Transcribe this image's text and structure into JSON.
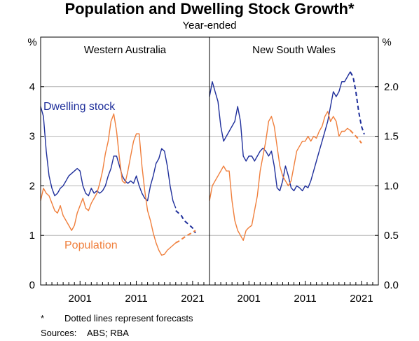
{
  "title": "Population and Dwelling Stock Growth*",
  "subtitle": "Year-ended",
  "footnote": {
    "marker": "*",
    "text": "Dotted lines represent forecasts"
  },
  "sources": {
    "label": "Sources:",
    "text": "ABS; RBA"
  },
  "colors": {
    "dwelling_stock": "#1f2f9b",
    "population": "#f07f3c",
    "grid": "#b4b4b4"
  },
  "chart_data": [
    {
      "type": "line",
      "title": "Western Australia",
      "ylabel": "%",
      "ylim": [
        0,
        5
      ],
      "yticks": [
        "0",
        "1",
        "2",
        "3",
        "4"
      ],
      "xlim": [
        1994,
        2024
      ],
      "xticks": [
        "2001",
        "2011",
        "2021"
      ],
      "xtick_values": [
        2001,
        2011,
        2021
      ],
      "grid": true,
      "series": [
        {
          "name": "Dwelling stock",
          "x": [
            1994.0,
            1994.5,
            1995.0,
            1995.5,
            1996.0,
            1996.5,
            1997.0,
            1997.5,
            1998.0,
            1998.5,
            1999.0,
            1999.5,
            2000.0,
            2000.5,
            2001.0,
            2001.5,
            2002.0,
            2002.5,
            2003.0,
            2003.5,
            2004.0,
            2004.5,
            2005.0,
            2005.5,
            2006.0,
            2006.5,
            2007.0,
            2007.5,
            2008.0,
            2008.5,
            2009.0,
            2009.5,
            2010.0,
            2010.5,
            2011.0,
            2011.5,
            2012.0,
            2012.5,
            2013.0,
            2013.5,
            2014.0,
            2014.5,
            2015.0,
            2015.5,
            2016.0,
            2016.5,
            2017.0,
            2017.5,
            2018.0
          ],
          "y": [
            3.6,
            3.4,
            2.7,
            2.2,
            1.95,
            1.8,
            1.85,
            1.95,
            2.0,
            2.1,
            2.2,
            2.25,
            2.3,
            2.35,
            2.3,
            2.0,
            1.85,
            1.8,
            1.95,
            1.85,
            1.9,
            1.85,
            1.9,
            2.0,
            2.2,
            2.35,
            2.6,
            2.6,
            2.4,
            2.2,
            2.1,
            2.05,
            2.1,
            2.05,
            2.2,
            2.0,
            1.85,
            1.75,
            1.7,
            2.0,
            2.2,
            2.45,
            2.55,
            2.75,
            2.7,
            2.4,
            2.0,
            1.7,
            1.55
          ]
        },
        {
          "name": "Dwelling stock forecast",
          "x": [
            2018.0,
            2018.5,
            2019.0,
            2019.5,
            2020.0,
            2020.5,
            2021.0,
            2021.5
          ],
          "y": [
            1.5,
            1.45,
            1.4,
            1.3,
            1.25,
            1.2,
            1.15,
            1.05
          ]
        },
        {
          "name": "Population",
          "x": [
            1994.0,
            1994.5,
            1995.0,
            1995.5,
            1996.0,
            1996.5,
            1997.0,
            1997.5,
            1998.0,
            1998.5,
            1999.0,
            1999.5,
            2000.0,
            2000.5,
            2001.0,
            2001.5,
            2002.0,
            2002.5,
            2003.0,
            2003.5,
            2004.0,
            2004.5,
            2005.0,
            2005.5,
            2006.0,
            2006.5,
            2007.0,
            2007.5,
            2008.0,
            2008.5,
            2009.0,
            2009.5,
            2010.0,
            2010.5,
            2011.0,
            2011.5,
            2012.0,
            2012.5,
            2013.0,
            2013.5,
            2014.0,
            2014.5,
            2015.0,
            2015.5,
            2016.0,
            2016.5,
            2017.0,
            2017.5,
            2018.0
          ],
          "y": [
            1.7,
            1.95,
            1.85,
            1.8,
            1.65,
            1.5,
            1.45,
            1.6,
            1.4,
            1.3,
            1.2,
            1.1,
            1.2,
            1.45,
            1.6,
            1.75,
            1.55,
            1.5,
            1.65,
            1.75,
            1.85,
            2.05,
            2.3,
            2.65,
            2.9,
            3.3,
            3.45,
            3.1,
            2.55,
            2.1,
            2.05,
            2.3,
            2.6,
            2.9,
            3.05,
            3.05,
            2.4,
            1.9,
            1.5,
            1.3,
            1.05,
            0.85,
            0.7,
            0.6,
            0.62,
            0.7,
            0.75,
            0.8,
            0.85
          ]
        },
        {
          "name": "Population forecast",
          "x": [
            2018.0,
            2018.5,
            2019.0,
            2019.5,
            2020.0,
            2020.5,
            2021.0,
            2021.5
          ],
          "y": [
            0.85,
            0.88,
            0.92,
            0.96,
            1.0,
            1.03,
            1.06,
            1.1
          ]
        }
      ]
    },
    {
      "type": "line",
      "title": "New South Wales",
      "ylabel": "%",
      "ylim": [
        0,
        2.5
      ],
      "yticks": [
        "0.0",
        "0.5",
        "1.0",
        "1.5",
        "2.0"
      ],
      "xlim": [
        1994,
        2024
      ],
      "xticks": [
        "2001",
        "2011",
        "2021"
      ],
      "xtick_values": [
        2001,
        2011,
        2021
      ],
      "grid": true,
      "series": [
        {
          "name": "Dwelling stock",
          "x": [
            1994.0,
            1994.5,
            1995.0,
            1995.5,
            1996.0,
            1996.5,
            1997.0,
            1997.5,
            1998.0,
            1998.5,
            1999.0,
            1999.5,
            2000.0,
            2000.5,
            2001.0,
            2001.5,
            2002.0,
            2002.5,
            2003.0,
            2003.5,
            2004.0,
            2004.5,
            2005.0,
            2005.5,
            2006.0,
            2006.5,
            2007.0,
            2007.5,
            2008.0,
            2008.5,
            2009.0,
            2009.5,
            2010.0,
            2010.5,
            2011.0,
            2011.5,
            2012.0,
            2012.5,
            2013.0,
            2013.5,
            2014.0,
            2014.5,
            2015.0,
            2015.5,
            2016.0,
            2016.5,
            2017.0,
            2017.5,
            2018.0,
            2018.5,
            2019.0
          ],
          "y": [
            1.9,
            2.05,
            1.95,
            1.85,
            1.6,
            1.45,
            1.5,
            1.55,
            1.6,
            1.65,
            1.8,
            1.65,
            1.3,
            1.25,
            1.3,
            1.3,
            1.25,
            1.3,
            1.35,
            1.38,
            1.35,
            1.3,
            1.35,
            1.2,
            0.98,
            0.95,
            1.05,
            1.2,
            1.1,
            0.98,
            0.95,
            1.0,
            0.98,
            0.95,
            1.0,
            0.98,
            1.05,
            1.15,
            1.25,
            1.35,
            1.45,
            1.55,
            1.65,
            1.8,
            1.95,
            1.9,
            1.95,
            2.05,
            2.05,
            2.1,
            2.15
          ]
        },
        {
          "name": "Dwelling stock forecast",
          "x": [
            2019.0,
            2019.5,
            2020.0,
            2020.5,
            2021.0,
            2021.5
          ],
          "y": [
            2.15,
            2.1,
            1.95,
            1.75,
            1.6,
            1.52
          ]
        },
        {
          "name": "Population",
          "x": [
            1994.0,
            1994.5,
            1995.0,
            1995.5,
            1996.0,
            1996.5,
            1997.0,
            1997.5,
            1998.0,
            1998.5,
            1999.0,
            1999.5,
            2000.0,
            2000.5,
            2001.0,
            2001.5,
            2002.0,
            2002.5,
            2003.0,
            2003.5,
            2004.0,
            2004.5,
            2005.0,
            2005.5,
            2006.0,
            2006.5,
            2007.0,
            2007.5,
            2008.0,
            2008.5,
            2009.0,
            2009.5,
            2010.0,
            2010.5,
            2011.0,
            2011.5,
            2012.0,
            2012.5,
            2013.0,
            2013.5,
            2014.0,
            2014.5,
            2015.0,
            2015.5,
            2016.0,
            2016.5,
            2017.0,
            2017.5,
            2018.0,
            2018.5,
            2019.0
          ],
          "y": [
            0.85,
            1.0,
            1.05,
            1.1,
            1.15,
            1.2,
            1.15,
            1.15,
            0.85,
            0.65,
            0.55,
            0.5,
            0.45,
            0.55,
            0.58,
            0.6,
            0.75,
            0.9,
            1.15,
            1.3,
            1.45,
            1.65,
            1.7,
            1.6,
            1.4,
            1.2,
            1.1,
            1.05,
            1.0,
            1.05,
            1.2,
            1.35,
            1.4,
            1.45,
            1.45,
            1.5,
            1.45,
            1.5,
            1.48,
            1.55,
            1.6,
            1.7,
            1.75,
            1.65,
            1.7,
            1.65,
            1.5,
            1.55,
            1.55,
            1.58,
            1.56
          ]
        },
        {
          "name": "Population forecast",
          "x": [
            2019.0,
            2019.5,
            2020.0,
            2020.5,
            2021.0
          ],
          "y": [
            1.56,
            1.53,
            1.5,
            1.47,
            1.43
          ]
        }
      ]
    }
  ],
  "labels": {
    "dwelling_stock": "Dwelling stock",
    "population": "Population"
  }
}
